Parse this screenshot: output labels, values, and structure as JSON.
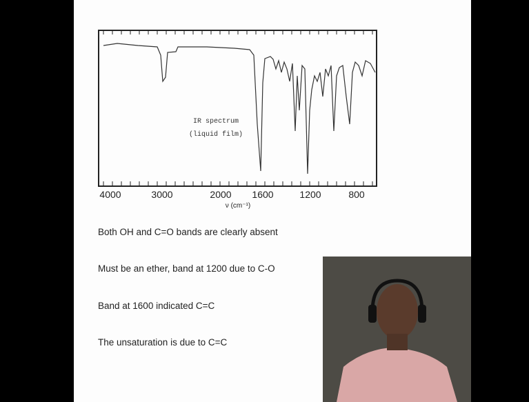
{
  "slide": {
    "spectrum": {
      "caption": [
        "IR spectrum",
        "(liquid film)"
      ],
      "x_ticks": [
        4000,
        3000,
        2000,
        1600,
        1200,
        800
      ],
      "x_axis_label": "ν (cm⁻¹)"
    },
    "bullets": [
      "Both OH and C=O bands are clearly absent",
      "Must be an ether, band at 1200 due to C-O",
      "Band at 1600 indicated C=C",
      "The unsaturation is due to C=C"
    ]
  }
}
